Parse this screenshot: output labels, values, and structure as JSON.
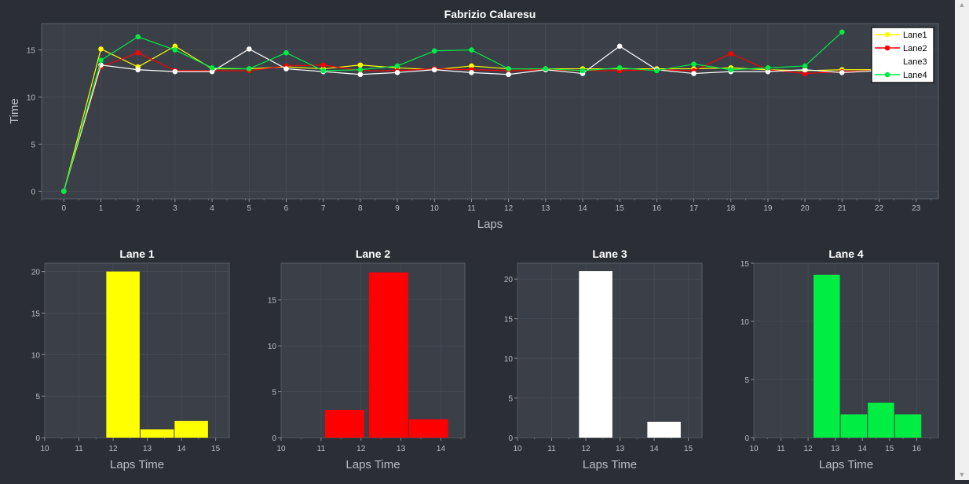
{
  "colors": {
    "lane1": "#ffff00",
    "lane2": "#ff0000",
    "lane3": "#ffffff",
    "lane4": "#00ee44",
    "plot_bg": "#3a3f48",
    "page_bg": "#2b2f35",
    "grid": "#4a505a",
    "text": "#b8bcc4",
    "title": "#ffffff"
  },
  "chart_data": [
    {
      "type": "line",
      "title": "Fabrizio Calaresu",
      "xlabel": "Laps",
      "ylabel": "Time",
      "xlim": [
        -0.6,
        23.6
      ],
      "ylim": [
        -0.8,
        17.8
      ],
      "x_ticks": [
        0,
        1,
        2,
        3,
        4,
        5,
        6,
        7,
        8,
        9,
        10,
        11,
        12,
        13,
        14,
        15,
        16,
        17,
        18,
        19,
        20,
        21,
        22,
        23
      ],
      "y_ticks": [
        0,
        5,
        10,
        15
      ],
      "legend_position": "top-right",
      "series": [
        {
          "name": "Lane1",
          "color": "#ffff00",
          "x": [
            0,
            1,
            2,
            3,
            4,
            5,
            6,
            7,
            8,
            9,
            10,
            11,
            12,
            13,
            14,
            15,
            16,
            17,
            18,
            19,
            20,
            21,
            22
          ],
          "values": [
            0,
            15.1,
            13.2,
            15.4,
            13.0,
            13.0,
            13.2,
            13.0,
            13.4,
            13.1,
            12.9,
            13.3,
            13.0,
            13.0,
            13.0,
            13.0,
            13.0,
            13.0,
            13.1,
            12.9,
            12.8,
            12.9,
            12.9
          ]
        },
        {
          "name": "Lane2",
          "color": "#ff0000",
          "x": [
            0,
            1,
            2,
            3,
            4,
            5,
            6,
            7,
            8,
            9,
            10,
            11,
            12,
            13,
            14,
            15,
            16,
            17,
            18,
            19,
            20,
            21,
            22
          ],
          "values": [
            0,
            13.2,
            14.7,
            12.8,
            12.8,
            12.8,
            13.3,
            13.4,
            12.8,
            12.8,
            13.0,
            12.9,
            12.8,
            12.9,
            12.8,
            12.8,
            12.9,
            12.8,
            14.6,
            12.9,
            12.5,
            12.7,
            12.8
          ]
        },
        {
          "name": "Lane3",
          "color": "#ffffff",
          "x": [
            0,
            1,
            2,
            3,
            4,
            5,
            6,
            7,
            8,
            9,
            10,
            11,
            12,
            13,
            14,
            15,
            16,
            17,
            18,
            19,
            20,
            21,
            22
          ],
          "values": [
            0,
            13.4,
            12.9,
            12.7,
            12.7,
            15.1,
            13.0,
            12.7,
            12.4,
            12.6,
            12.9,
            12.6,
            12.4,
            12.9,
            12.5,
            15.4,
            12.9,
            12.5,
            12.7,
            12.7,
            12.9,
            12.6,
            12.8
          ]
        },
        {
          "name": "Lane4",
          "color": "#00ee44",
          "x": [
            0,
            1,
            2,
            3,
            4,
            5,
            6,
            7,
            8,
            9,
            10,
            11,
            12,
            13,
            14,
            15,
            16,
            17,
            18,
            19,
            20,
            21
          ],
          "values": [
            0,
            13.9,
            16.4,
            15.0,
            13.1,
            13.0,
            14.7,
            12.8,
            12.9,
            13.3,
            14.9,
            15.0,
            13.0,
            13.0,
            12.8,
            13.1,
            12.8,
            13.5,
            12.9,
            13.1,
            13.3,
            16.9
          ]
        }
      ]
    },
    {
      "type": "bar",
      "title": "Lane 1",
      "xlabel": "Laps Time",
      "ylabel": "",
      "color": "#ffff00",
      "xlim": [
        10,
        15.4
      ],
      "ylim": [
        0,
        21
      ],
      "x_ticks": [
        10,
        11,
        12,
        13,
        14,
        15
      ],
      "y_ticks": [
        0,
        5,
        10,
        15,
        20
      ],
      "bins": [
        {
          "from": 11.8,
          "to": 12.8,
          "count": 20
        },
        {
          "from": 12.8,
          "to": 13.8,
          "count": 1
        },
        {
          "from": 13.8,
          "to": 14.8,
          "count": 2
        }
      ]
    },
    {
      "type": "bar",
      "title": "Lane 2",
      "xlabel": "Laps Time",
      "ylabel": "",
      "color": "#ff0000",
      "xlim": [
        10,
        14.6
      ],
      "ylim": [
        0,
        19
      ],
      "x_ticks": [
        10,
        11,
        12,
        13,
        14
      ],
      "y_ticks": [
        0,
        5,
        10,
        15
      ],
      "bins": [
        {
          "from": 11.1,
          "to": 12.1,
          "count": 3
        },
        {
          "from": 12.2,
          "to": 13.2,
          "count": 18
        },
        {
          "from": 13.2,
          "to": 14.2,
          "count": 2
        }
      ]
    },
    {
      "type": "bar",
      "title": "Lane 3",
      "xlabel": "Laps Time",
      "ylabel": "",
      "color": "#ffffff",
      "xlim": [
        10,
        15.4
      ],
      "ylim": [
        0,
        22
      ],
      "x_ticks": [
        10,
        11,
        12,
        13,
        14,
        15
      ],
      "y_ticks": [
        0,
        5,
        10,
        15,
        20
      ],
      "bins": [
        {
          "from": 11.8,
          "to": 12.8,
          "count": 21
        },
        {
          "from": 13.8,
          "to": 14.8,
          "count": 2
        }
      ]
    },
    {
      "type": "bar",
      "title": "Lane 4",
      "xlabel": "Laps Time",
      "ylabel": "",
      "color": "#00ee44",
      "xlim": [
        10,
        16.8
      ],
      "ylim": [
        0,
        15
      ],
      "x_ticks": [
        10,
        11,
        12,
        13,
        14,
        15,
        16
      ],
      "y_ticks": [
        0,
        5,
        10,
        15
      ],
      "bins": [
        {
          "from": 12.2,
          "to": 13.2,
          "count": 14
        },
        {
          "from": 13.2,
          "to": 14.2,
          "count": 2
        },
        {
          "from": 14.2,
          "to": 15.2,
          "count": 3
        },
        {
          "from": 15.2,
          "to": 16.2,
          "count": 2
        }
      ]
    }
  ]
}
